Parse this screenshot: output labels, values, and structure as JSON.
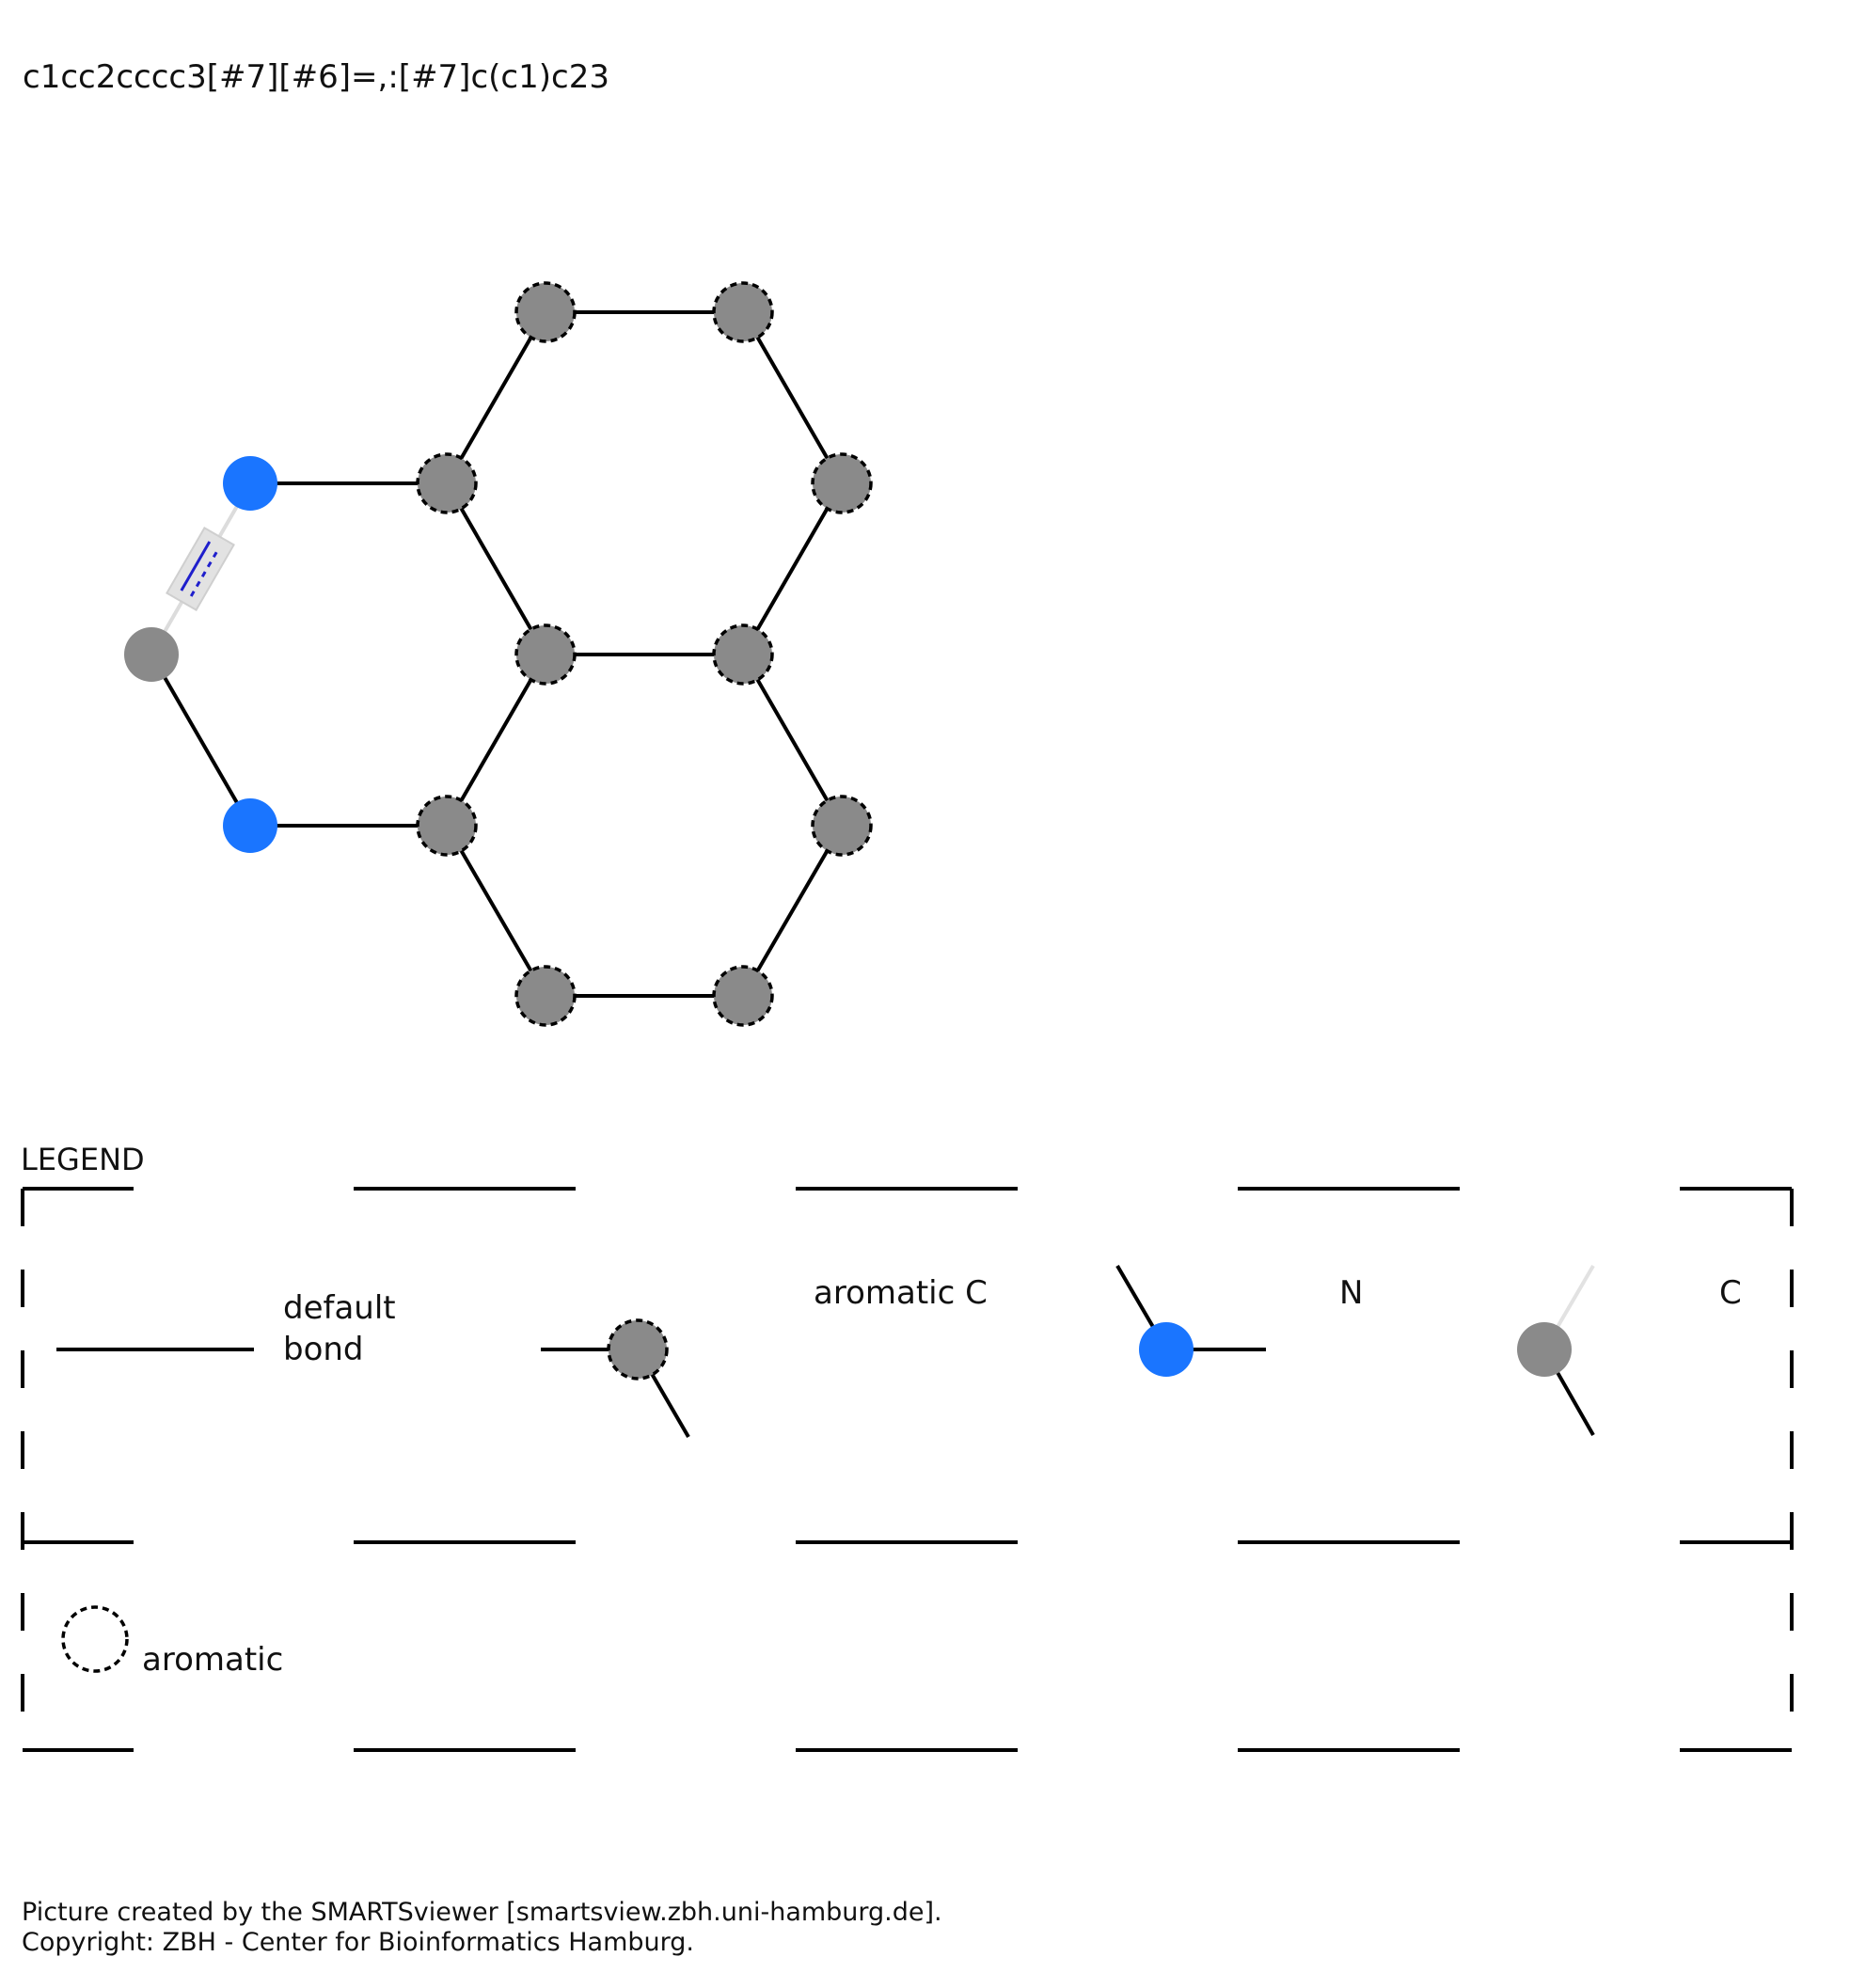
{
  "smarts": "c1cc2cccc3[#7][#6]=,:[#7]c(c1)c23",
  "colors": {
    "nitrogen": "#1a75ff",
    "carbon": "#8a8a8a",
    "bond": "#000000",
    "query_bond": "#1f1fcc",
    "query_bond_box": "#e0e0e0"
  },
  "legend": {
    "title": "LEGEND",
    "items": {
      "default_bond_line1": "default",
      "default_bond_line2": "bond",
      "aromatic_c": "aromatic C",
      "n": "N",
      "c": "C",
      "aromatic": "aromatic"
    }
  },
  "footer": {
    "line1": "Picture created by the SMARTSviewer [smartsview.zbh.uni-hamburg.de].",
    "line2": "Copyright: ZBH - Center for Bioinformatics Hamburg."
  }
}
